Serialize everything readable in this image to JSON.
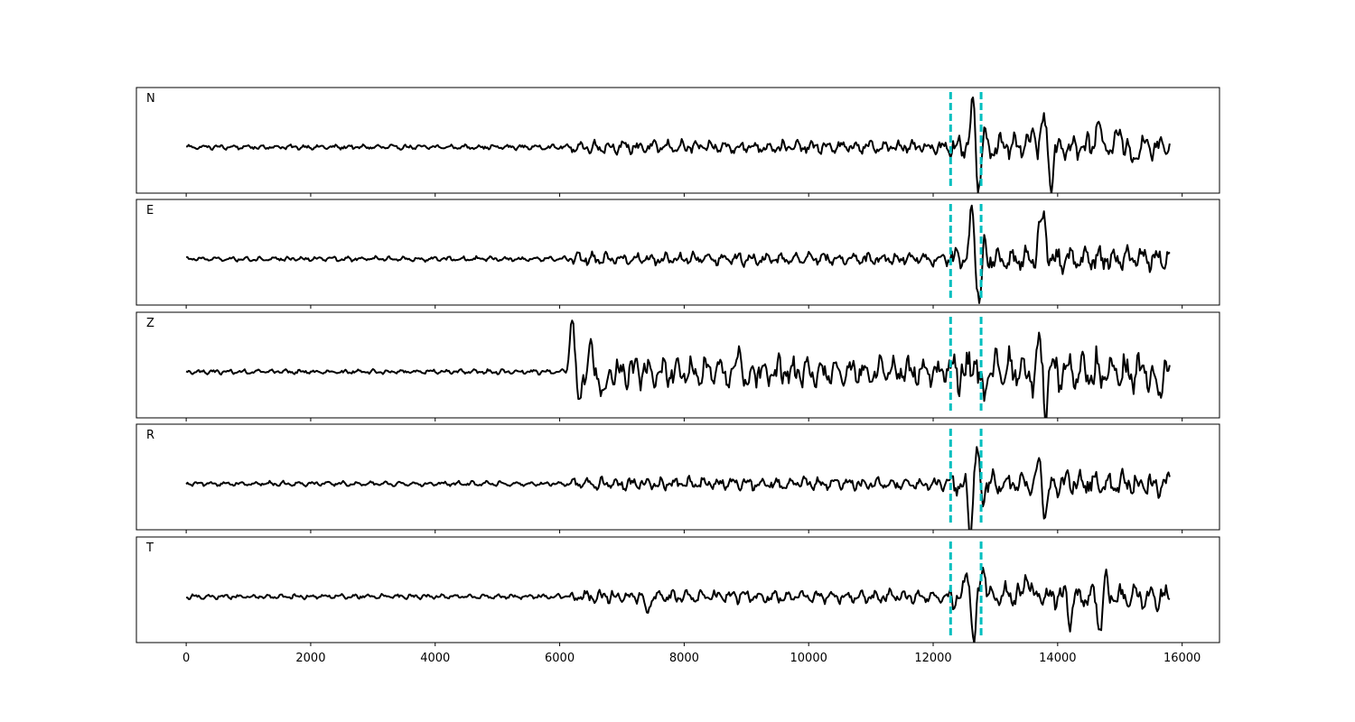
{
  "chart_data": {
    "type": "line",
    "xlim": [
      -800,
      16600
    ],
    "x_ticks": [
      0,
      2000,
      4000,
      6000,
      8000,
      10000,
      12000,
      14000,
      16000
    ],
    "x_tick_labels": [
      "0",
      "2000",
      "4000",
      "6000",
      "8000",
      "10000",
      "12000",
      "14000",
      "16000"
    ],
    "y_ticks": false,
    "grid": false,
    "trace_color": "#000000",
    "marker_color": "#00bfbf",
    "sample_count": 15800,
    "vertical_markers": [
      12280,
      12770
    ],
    "panels": [
      {
        "name": "N",
        "keypoints": [
          [
            0,
            0
          ],
          [
            6200,
            0.02
          ],
          [
            6400,
            -0.2
          ],
          [
            9000,
            0.1
          ],
          [
            12280,
            0
          ],
          [
            12600,
            -0.25
          ],
          [
            12650,
            1.3
          ],
          [
            12700,
            -0.6
          ],
          [
            12750,
            -0.9
          ],
          [
            12800,
            0.55
          ],
          [
            12950,
            -0.3
          ],
          [
            13600,
            0.4
          ],
          [
            13780,
            0.7
          ],
          [
            13900,
            -0.8
          ],
          [
            14650,
            0.7
          ],
          [
            15000,
            0.5
          ],
          [
            15200,
            -0.4
          ],
          [
            15800,
            0.05
          ]
        ]
      },
      {
        "name": "E",
        "keypoints": [
          [
            0,
            0
          ],
          [
            6250,
            0
          ],
          [
            6500,
            -0.15
          ],
          [
            9000,
            0.1
          ],
          [
            12280,
            0
          ],
          [
            12550,
            -0.25
          ],
          [
            12630,
            1.3
          ],
          [
            12700,
            -0.5
          ],
          [
            12760,
            -0.9
          ],
          [
            12820,
            0.45
          ],
          [
            13700,
            0.6
          ],
          [
            13780,
            0.9
          ],
          [
            13850,
            -0.3
          ],
          [
            14600,
            0.2
          ],
          [
            15800,
            -0.1
          ]
        ]
      },
      {
        "name": "Z",
        "keypoints": [
          [
            0,
            0
          ],
          [
            6000,
            0.1
          ],
          [
            6200,
            1.4
          ],
          [
            6300,
            -0.8
          ],
          [
            6500,
            0.6
          ],
          [
            6700,
            -0.8
          ],
          [
            8900,
            0.6
          ],
          [
            9000,
            -0.4
          ],
          [
            12400,
            -0.3
          ],
          [
            12650,
            0.5
          ],
          [
            12800,
            -0.6
          ],
          [
            13700,
            0.7
          ],
          [
            13800,
            -0.7
          ],
          [
            15600,
            -0.6
          ],
          [
            15800,
            0.05
          ]
        ]
      },
      {
        "name": "R",
        "keypoints": [
          [
            0,
            0
          ],
          [
            6200,
            0
          ],
          [
            6400,
            0.1
          ],
          [
            9000,
            0.1
          ],
          [
            12280,
            0
          ],
          [
            12500,
            -0.3
          ],
          [
            12600,
            -1.2
          ],
          [
            12700,
            0.9
          ],
          [
            12780,
            -0.4
          ],
          [
            13700,
            0.5
          ],
          [
            13800,
            -0.7
          ],
          [
            14500,
            0.3
          ],
          [
            15800,
            0.1
          ]
        ]
      },
      {
        "name": "T",
        "keypoints": [
          [
            0,
            0
          ],
          [
            6200,
            0.1
          ],
          [
            6500,
            0.2
          ],
          [
            7400,
            -0.4
          ],
          [
            9000,
            0.2
          ],
          [
            12280,
            0
          ],
          [
            12550,
            0.65
          ],
          [
            12650,
            -1.2
          ],
          [
            12800,
            0.8
          ],
          [
            13500,
            0.7
          ],
          [
            14200,
            -0.6
          ],
          [
            14680,
            -0.9
          ],
          [
            14750,
            0.5
          ],
          [
            15800,
            -0.1
          ]
        ]
      }
    ]
  }
}
